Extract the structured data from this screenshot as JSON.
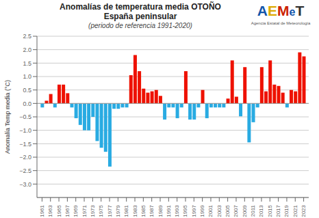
{
  "chart_data": {
    "type": "bar",
    "title": "Anomalías de temperatura media OTOÑO",
    "subtitle": "España peninsular",
    "annotations": [
      "(periodo de referencia 1991-2020)",
      "AEMeT",
      "Agencia Estatal de Meteorología"
    ],
    "ylabel": "Anomalía Temp media (°C)",
    "x": [
      1961,
      1962,
      1963,
      1964,
      1965,
      1966,
      1967,
      1968,
      1969,
      1970,
      1971,
      1972,
      1973,
      1974,
      1975,
      1976,
      1977,
      1978,
      1979,
      1980,
      1981,
      1982,
      1983,
      1984,
      1985,
      1986,
      1987,
      1988,
      1989,
      1990,
      1991,
      1992,
      1993,
      1994,
      1995,
      1996,
      1997,
      1998,
      1999,
      2000,
      2001,
      2002,
      2003,
      2004,
      2005,
      2006,
      2007,
      2008,
      2009,
      2010,
      2011,
      2012,
      2013,
      2014,
      2015,
      2016,
      2017,
      2018,
      2019,
      2020,
      2021,
      2022,
      2023
    ],
    "values": [
      -0.15,
      0.1,
      0.35,
      -0.15,
      0.7,
      0.7,
      0.38,
      -0.15,
      -0.55,
      -0.8,
      -1.0,
      -1.0,
      -0.5,
      -1.4,
      -1.65,
      -1.8,
      -2.35,
      -0.2,
      -0.2,
      -0.15,
      -0.15,
      1.05,
      1.8,
      1.2,
      0.55,
      0.4,
      0.45,
      0.5,
      0.28,
      -0.6,
      -0.15,
      -0.15,
      -0.55,
      -0.15,
      1.2,
      -0.6,
      -0.6,
      -0.15,
      0.5,
      -0.55,
      -0.15,
      -0.15,
      -0.15,
      -0.15,
      0.18,
      1.6,
      0.25,
      -0.48,
      1.35,
      -1.45,
      -0.7,
      -0.15,
      1.35,
      0.45,
      1.6,
      0.7,
      0.65,
      0.4,
      -0.15,
      0.5,
      0.45,
      1.9,
      1.75
    ],
    "colors": [
      "#29ABE2",
      "#EE1100",
      "#EE1100",
      "#29ABE2",
      "#EE1100",
      "#EE1100",
      "#EE1100",
      "#29ABE2",
      "#29ABE2",
      "#29ABE2",
      "#29ABE2",
      "#29ABE2",
      "#29ABE2",
      "#29ABE2",
      "#29ABE2",
      "#29ABE2",
      "#29ABE2",
      "#29ABE2",
      "#29ABE2",
      "#29ABE2",
      "#29ABE2",
      "#EE1100",
      "#EE1100",
      "#EE1100",
      "#EE1100",
      "#EE1100",
      "#EE1100",
      "#EE1100",
      "#EE1100",
      "#29ABE2",
      "#29ABE2",
      "#29ABE2",
      "#29ABE2",
      "#29ABE2",
      "#EE1100",
      "#29ABE2",
      "#29ABE2",
      "#29ABE2",
      "#EE1100",
      "#29ABE2",
      "#29ABE2",
      "#29ABE2",
      "#29ABE2",
      "#29ABE2",
      "#EE1100",
      "#EE1100",
      "#EE1100",
      "#29ABE2",
      "#EE1100",
      "#29ABE2",
      "#29ABE2",
      "#29ABE2",
      "#EE1100",
      "#EE1100",
      "#EE1100",
      "#EE1100",
      "#EE1100",
      "#EE1100",
      "#29ABE2",
      "#EE1100",
      "#EE1100",
      "#EE1100",
      "#EE1100"
    ],
    "xlim": [
      1959.8,
      2024.2
    ],
    "xticks": [
      1961,
      1963,
      1965,
      1967,
      1969,
      1971,
      1973,
      1975,
      1977,
      1979,
      1981,
      1983,
      1985,
      1987,
      1989,
      1991,
      1993,
      1995,
      1997,
      1999,
      2001,
      2003,
      2005,
      2007,
      2009,
      2011,
      2013,
      2015,
      2017,
      2019,
      2021,
      2023
    ],
    "ylim": [
      -3.5,
      2.5
    ],
    "yticks": [
      {
        "value": -3.0,
        "label": "−3.0"
      },
      {
        "value": -2.5,
        "label": "−2.5"
      },
      {
        "value": -2.0,
        "label": "−2.0"
      },
      {
        "value": -1.5,
        "label": "−1.5"
      },
      {
        "value": -1.0,
        "label": "−1.0"
      },
      {
        "value": -0.5,
        "label": "−0.5"
      },
      {
        "value": 0.0,
        "label": "0.0"
      },
      0.5,
      {
        "value": 1.0,
        "label": "1.0"
      },
      1.5,
      {
        "value": 2.0,
        "label": "2.0"
      },
      2.5
    ],
    "grid": true
  }
}
